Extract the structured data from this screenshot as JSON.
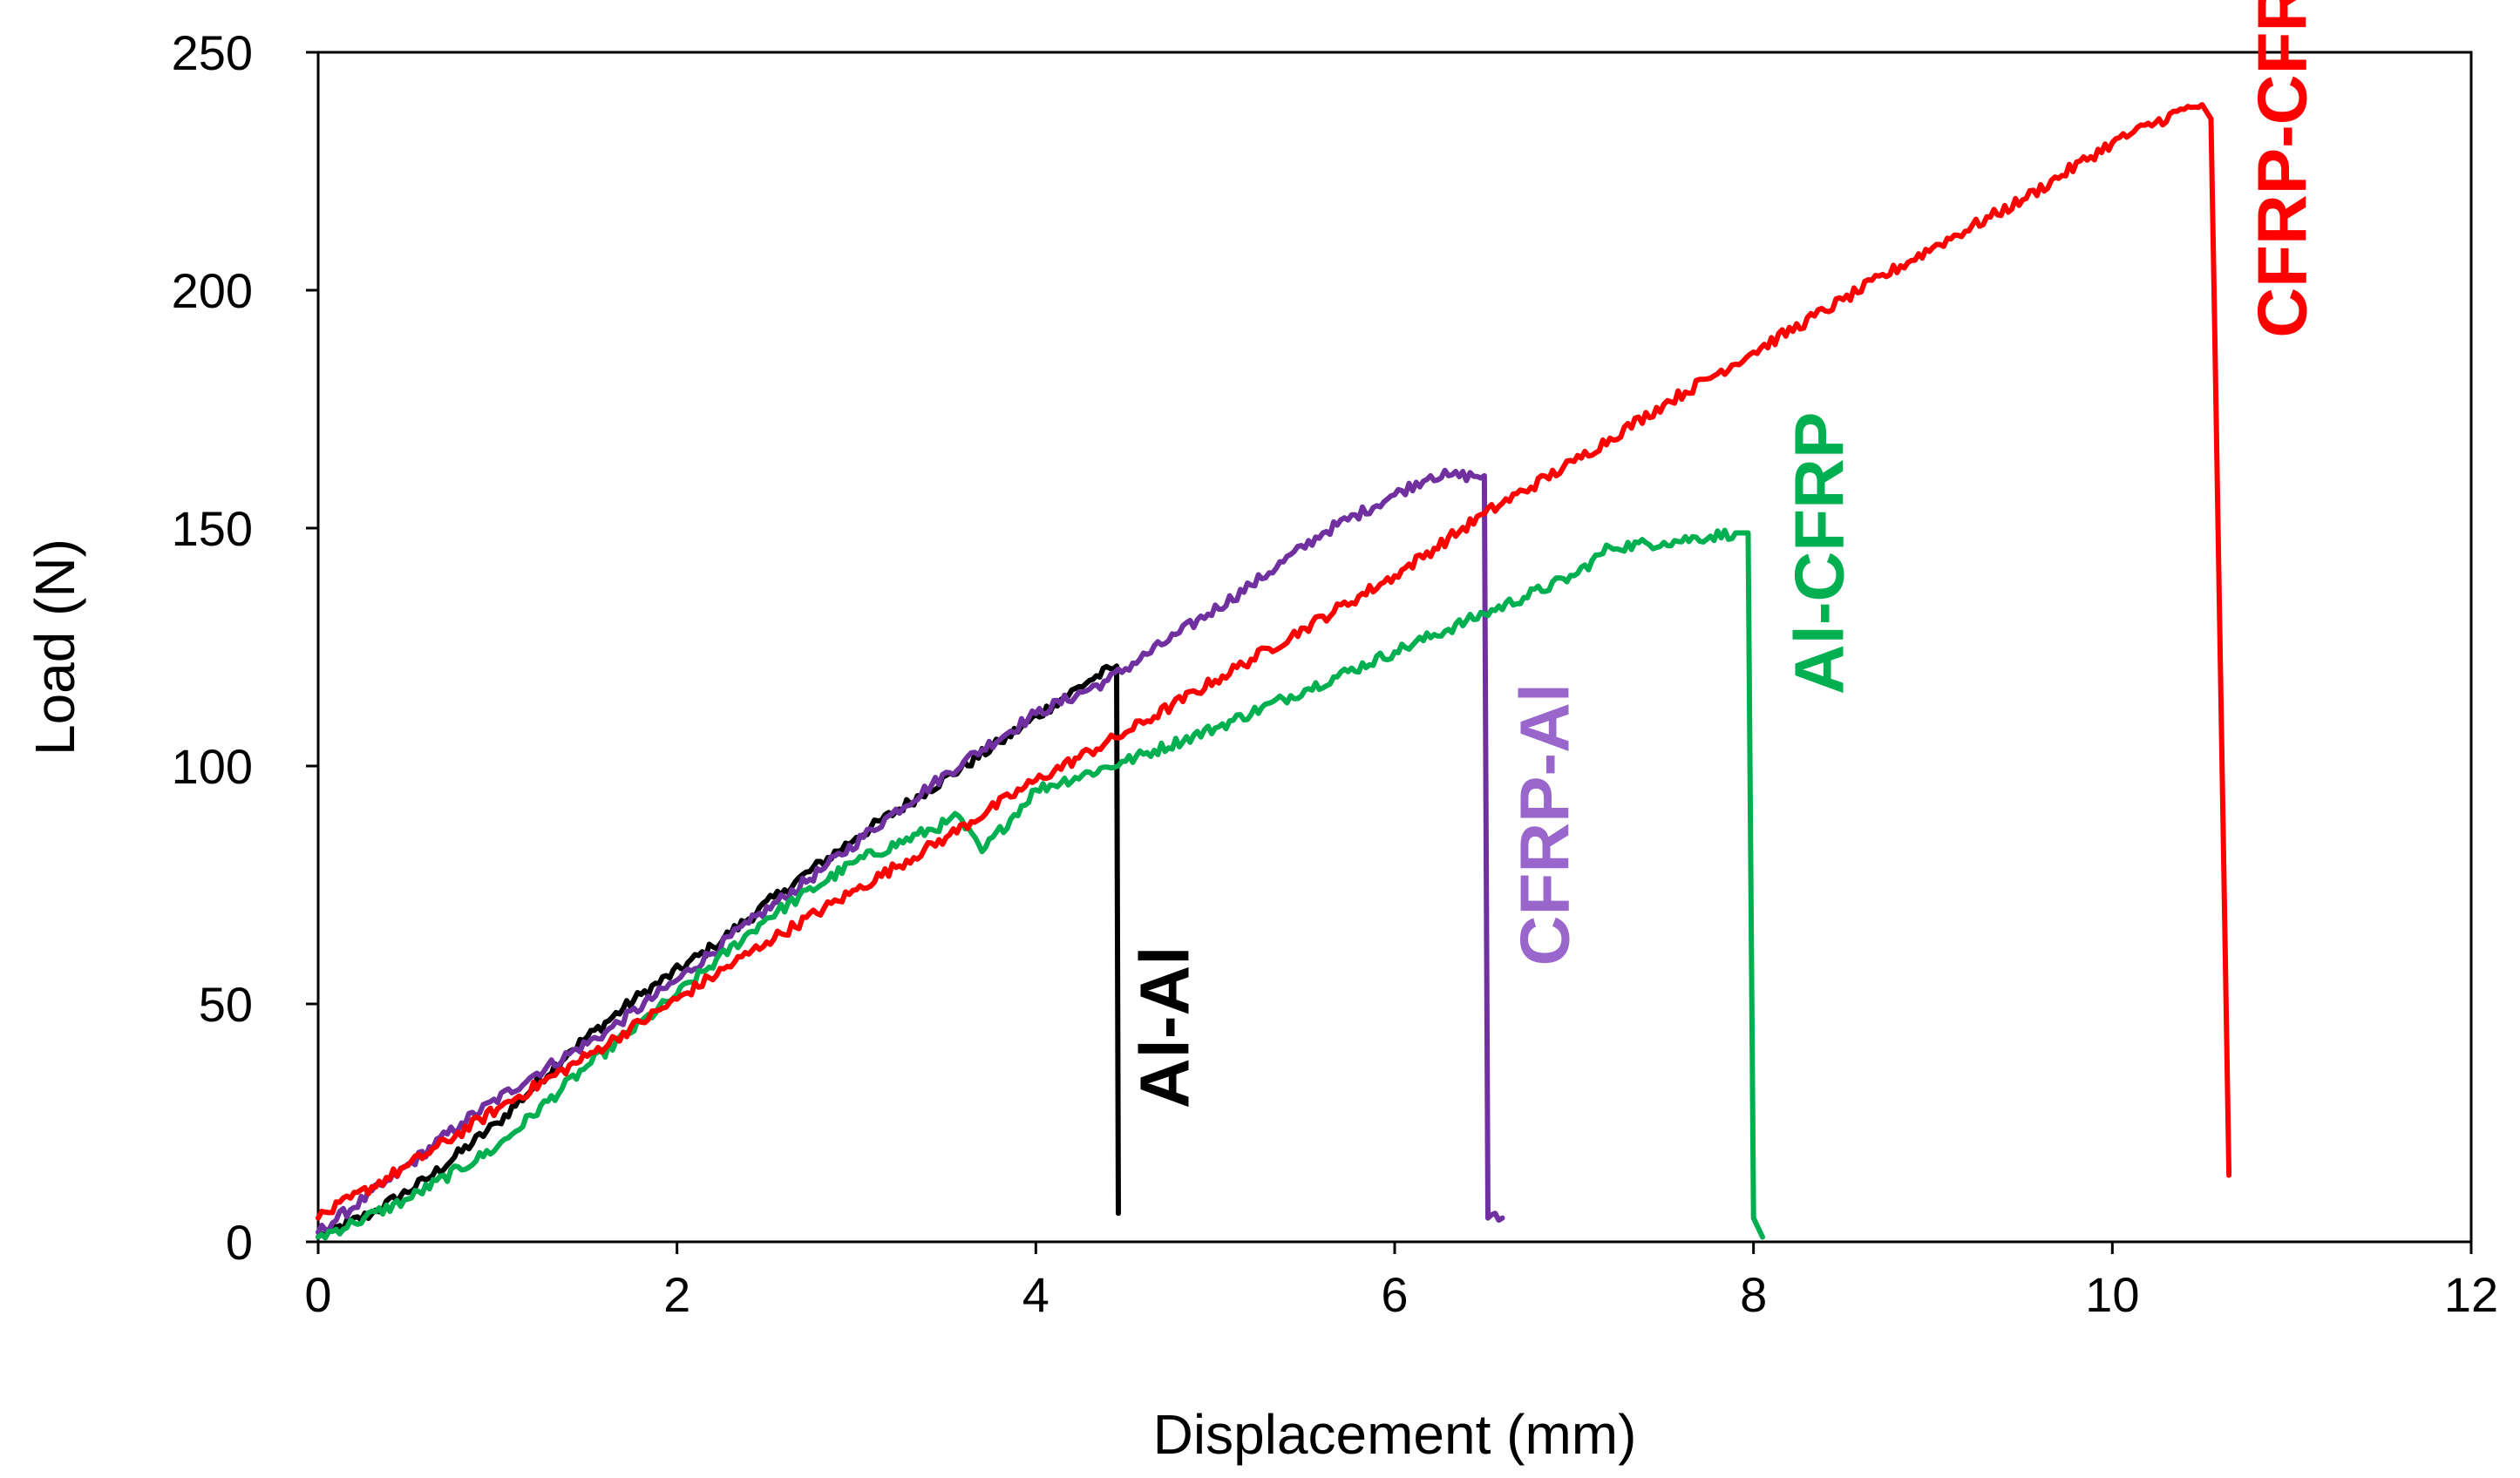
{
  "chart_data": {
    "type": "line",
    "title": "",
    "xlabel": "Displacement (mm)",
    "ylabel": "Load (N)",
    "xlim": [
      0,
      12
    ],
    "ylim": [
      0,
      250
    ],
    "xticks": [
      0,
      2,
      4,
      6,
      8,
      10,
      12
    ],
    "yticks": [
      0,
      50,
      100,
      150,
      200,
      250
    ],
    "xtick_labels": [
      "0",
      "2",
      "4",
      "6",
      "8",
      "10",
      "12"
    ],
    "ytick_labels": [
      "0",
      "50",
      "100",
      "150",
      "200",
      "250"
    ],
    "grid": false,
    "legend": "none (series labeled inline)",
    "series": [
      {
        "name": "Al-Al",
        "color": "#000000",
        "x": [
          0.0,
          0.3,
          0.6,
          1.0,
          1.4,
          1.8,
          2.2,
          2.6,
          3.0,
          3.4,
          3.8,
          4.1,
          4.3,
          4.45,
          4.46
        ],
        "y": [
          1,
          6,
          13,
          25,
          40,
          52,
          62,
          74,
          85,
          95,
          105,
          113,
          118,
          121,
          6
        ]
      },
      {
        "name": "CFRP-Al",
        "color": "#7030A0",
        "x": [
          0.0,
          0.4,
          0.8,
          1.2,
          1.6,
          2.0,
          2.4,
          2.8,
          3.2,
          3.6,
          4.0,
          4.4,
          4.8,
          5.2,
          5.6,
          6.0,
          6.2,
          6.3,
          6.5,
          6.52,
          6.6
        ],
        "y": [
          2,
          13,
          25,
          35,
          44,
          55,
          67,
          78,
          90,
          101,
          111,
          118,
          128,
          138,
          149,
          157,
          161,
          161,
          161,
          5,
          5
        ]
      },
      {
        "name": "Al-CFRP",
        "color": "#00B050",
        "x": [
          0.0,
          0.2,
          0.5,
          1.0,
          1.5,
          2.0,
          2.5,
          3.0,
          3.5,
          3.55,
          3.7,
          4.0,
          4.5,
          5.0,
          5.5,
          6.0,
          6.5,
          7.0,
          7.2,
          7.5,
          7.9,
          7.97,
          8.0,
          8.05
        ],
        "y": [
          1,
          4,
          9,
          20,
          37,
          52,
          68,
          80,
          88,
          90,
          82,
          95,
          101,
          108,
          116,
          124,
          132,
          140,
          146,
          147,
          149,
          149,
          5,
          1
        ]
      },
      {
        "name": "CFRP-CFRP",
        "color": "#FF0000",
        "x": [
          0.0,
          0.5,
          1.0,
          1.5,
          2.0,
          2.5,
          3.0,
          3.5,
          4.0,
          4.5,
          5.0,
          5.5,
          6.0,
          6.5,
          7.0,
          7.5,
          8.0,
          8.5,
          9.0,
          9.5,
          10.0,
          10.4,
          10.5,
          10.55,
          10.65
        ],
        "y": [
          5,
          16,
          28,
          39,
          51,
          63,
          74,
          85,
          97,
          107,
          118,
          129,
          140,
          153,
          164,
          176,
          187,
          198,
          209,
          219,
          231,
          238,
          239,
          236,
          14
        ]
      }
    ],
    "annotations": [
      {
        "text": "Al-Al",
        "x": 4.85,
        "y": 28,
        "color": "#000000",
        "rotation": -90
      },
      {
        "text": "CFRP-Al",
        "x": 6.97,
        "y": 58,
        "color": "#9966CC",
        "rotation": -90
      },
      {
        "text": "Al-CFRP",
        "x": 8.5,
        "y": 115,
        "color": "#00B050",
        "rotation": -90
      },
      {
        "text": "CFRP-CFRP",
        "x": 11.08,
        "y": 190,
        "color": "#FF0000",
        "rotation": -90
      }
    ]
  }
}
